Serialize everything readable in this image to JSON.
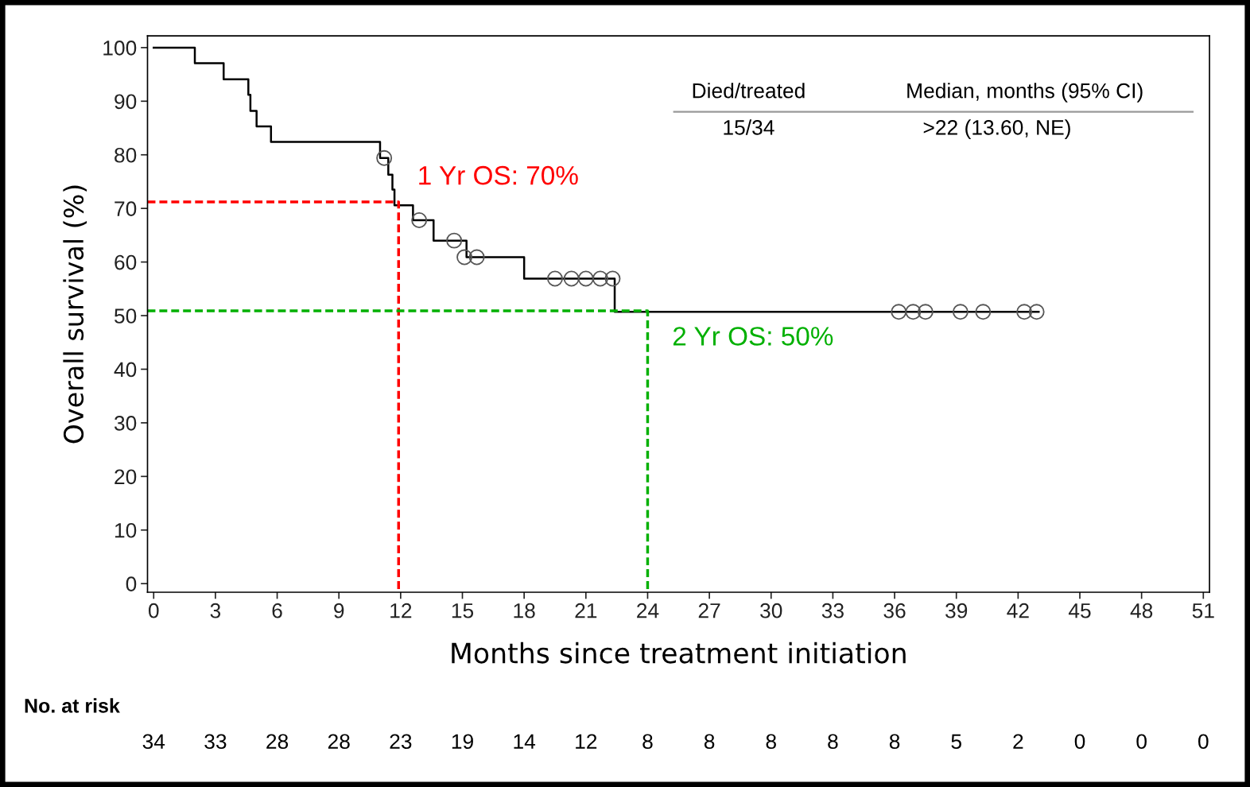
{
  "chart_data": {
    "type": "step",
    "xlabel": "Months since treatment initiation",
    "ylabel": "Overall survival (%)",
    "xlim": [
      -0.3,
      51.3
    ],
    "ylim": [
      -1.6,
      102.2
    ],
    "xticks": [
      0,
      3,
      6,
      9,
      12,
      15,
      18,
      21,
      24,
      27,
      30,
      33,
      36,
      39,
      42,
      45,
      48,
      51
    ],
    "yticks": [
      0,
      10,
      20,
      30,
      40,
      50,
      60,
      70,
      80,
      90,
      100
    ],
    "grid": false,
    "legend": false,
    "series": [
      {
        "color": "#000000",
        "marker": "none",
        "line_style": "solid",
        "x": [
          0,
          2.0,
          3.4,
          4.6,
          4.7,
          5.0,
          5.7,
          11.0,
          11.4,
          11.6,
          11.7,
          12.6,
          13.6,
          15.2,
          18.0,
          22.4,
          43.0
        ],
        "values": [
          100,
          97.1,
          94.1,
          91.2,
          88.2,
          85.3,
          82.4,
          79.4,
          76.3,
          73.5,
          70.6,
          67.8,
          64.0,
          60.9,
          56.9,
          50.7,
          50.7
        ]
      },
      {
        "type": "scatter",
        "color": "#555555",
        "marker": "circle",
        "x": [
          11.2,
          12.9,
          14.6,
          15.1,
          15.7,
          19.5,
          20.3,
          21.0,
          21.7,
          22.3,
          36.2,
          36.9,
          37.5,
          39.2,
          40.3,
          42.3,
          42.9
        ],
        "values": [
          79.4,
          67.8,
          64.0,
          60.9,
          60.9,
          56.9,
          56.9,
          56.9,
          56.9,
          56.9,
          50.7,
          50.7,
          50.7,
          50.7,
          50.7,
          50.7,
          50.7
        ]
      },
      {
        "type": "line",
        "color": "#ff0000",
        "marker": "none",
        "line_style": "dashed",
        "x": [
          -0.3,
          11.9,
          11.9
        ],
        "values": [
          71.2,
          71.2,
          -1
        ]
      },
      {
        "type": "line",
        "color": "#00b000",
        "marker": "none",
        "line_style": "dashed",
        "x": [
          -0.3,
          24.0,
          24.0
        ],
        "values": [
          50.9,
          50.9,
          -1
        ]
      }
    ],
    "annotations": [
      "1 Yr OS: 70%",
      "2 Yr OS: 50%",
      "Died/treated",
      "Median, months (95% CI)",
      "15/34",
      ">22 (13.60, NE)",
      "No. at risk",
      "34",
      "33",
      "28",
      "28",
      "23",
      "19",
      "14",
      "12",
      "8",
      "8",
      "8",
      "8",
      "8",
      "5",
      "2",
      "0",
      "0",
      "0"
    ]
  }
}
